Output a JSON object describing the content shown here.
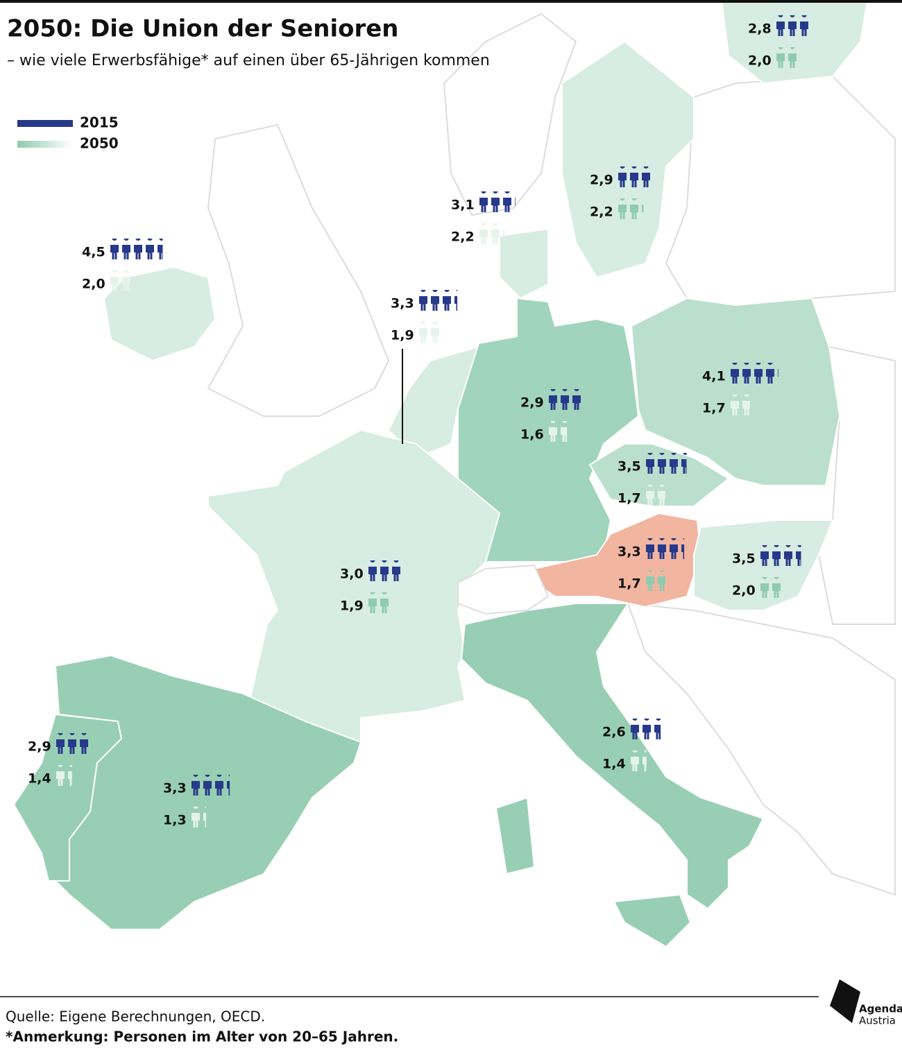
{
  "header": {
    "title": "2050: Die Union der Senioren",
    "subtitle": "– wie viele Erwerbsfähige* auf einen über 65-Jährigen kommen"
  },
  "legend": [
    {
      "label": "2015",
      "colors": [
        "#27398a",
        "#27398a"
      ]
    },
    {
      "label": "2050",
      "colors": [
        "#8fcbb0",
        "#ffffff"
      ]
    }
  ],
  "countries": [
    {
      "fill": "#d7ece2",
      "icon_color": "#8fcbb0",
      "v2015": 2.8,
      "l2015": "2,8",
      "v2050": 2.0,
      "l2050": "2,0"
    },
    {
      "fill": "#d7ece2",
      "icon_color": "#8fcbb0",
      "v2015": 2.9,
      "l2015": "2,9",
      "v2050": 2.2,
      "l2050": "2,2"
    },
    {
      "fill": "#d7ece2",
      "icon_color": "#e6f3ec",
      "v2015": 3.1,
      "l2015": "3,1",
      "v2050": 2.2,
      "l2050": "2,2"
    },
    {
      "fill": "#d7ece2",
      "icon_color": "#e6f3ec",
      "v2015": 4.5,
      "l2015": "4,5",
      "v2050": 2.0,
      "l2050": "2,0"
    },
    {
      "fill": "#d7ece2",
      "icon_color": "#e6f3ec",
      "v2015": 3.3,
      "l2015": "3,3",
      "v2050": 1.9,
      "l2050": "1,9"
    },
    {
      "fill": "#a0d4bc",
      "icon_color": "#e6f3ec",
      "v2015": 2.9,
      "l2015": "2,9",
      "v2050": 1.6,
      "l2050": "1,6"
    },
    {
      "fill": "#badfcd",
      "icon_color": "#e6f3ec",
      "v2015": 4.1,
      "l2015": "4,1",
      "v2050": 1.7,
      "l2050": "1,7"
    },
    {
      "fill": "#badfcd",
      "icon_color": "#e6f3ec",
      "v2015": 3.5,
      "l2015": "3,5",
      "v2050": 1.7,
      "l2050": "1,7"
    },
    {
      "fill": "#f1b5a0",
      "icon_color": "#8fcbb0",
      "v2015": 3.3,
      "l2015": "3,3",
      "v2050": 1.7,
      "l2050": "1,7"
    },
    {
      "fill": "#d7ece2",
      "icon_color": "#8fcbb0",
      "v2015": 3.5,
      "l2015": "3,5",
      "v2050": 2.0,
      "l2050": "2,0"
    },
    {
      "fill": "#d7ece2",
      "icon_color": "#8fcbb0",
      "v2015": 3.0,
      "l2015": "3,0",
      "v2050": 1.9,
      "l2050": "1,9"
    },
    {
      "fill": "#98cfb4",
      "icon_color": "#e6f3ec",
      "v2015": 2.9,
      "l2015": "2,9",
      "v2050": 1.4,
      "l2050": "1,4"
    },
    {
      "fill": "#98cfb4",
      "icon_color": "#e6f3ec",
      "v2015": 3.3,
      "l2015": "3,3",
      "v2050": 1.3,
      "l2050": "1,3"
    },
    {
      "fill": "#98cfb4",
      "icon_color": "#e6f3ec",
      "v2015": 2.6,
      "l2015": "2,6",
      "v2050": 1.4,
      "l2050": "1,4"
    }
  ],
  "footer": {
    "source": "Quelle: Eigene Berechnungen, OECD.",
    "note": "*Anmerkung: Personen im Alter von 20–65 Jahren."
  },
  "logo": {
    "line1": "Agenda",
    "line2": "Austria"
  }
}
